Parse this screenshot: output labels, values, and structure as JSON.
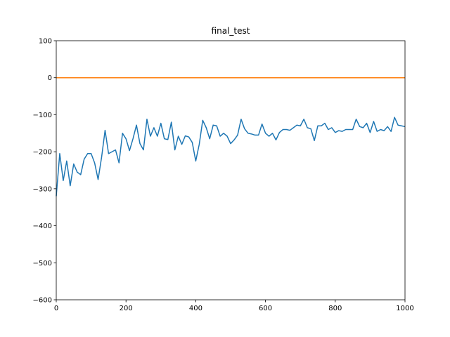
{
  "chart_data": {
    "type": "line",
    "title": "final_test",
    "xlabel": "",
    "ylabel": "",
    "xlim": [
      0,
      1000
    ],
    "ylim": [
      -600,
      100
    ],
    "xticks": [
      0,
      200,
      400,
      600,
      800,
      1000
    ],
    "yticks": [
      100,
      0,
      -100,
      -200,
      -300,
      -400,
      -500,
      -600
    ],
    "grid": false,
    "legend": "none",
    "series": [
      {
        "color": "#1f77b4",
        "x": [
          0,
          10,
          20,
          30,
          40,
          50,
          60,
          70,
          80,
          90,
          100,
          110,
          120,
          130,
          140,
          150,
          160,
          170,
          180,
          190,
          200,
          210,
          220,
          230,
          240,
          250,
          260,
          270,
          280,
          290,
          300,
          310,
          320,
          330,
          340,
          350,
          360,
          370,
          380,
          390,
          400,
          410,
          420,
          430,
          440,
          450,
          460,
          470,
          480,
          490,
          500,
          510,
          520,
          530,
          540,
          550,
          560,
          570,
          580,
          590,
          600,
          610,
          620,
          630,
          640,
          650,
          660,
          670,
          680,
          690,
          700,
          710,
          720,
          730,
          740,
          750,
          760,
          770,
          780,
          790,
          800,
          810,
          820,
          830,
          840,
          850,
          860,
          870,
          880,
          890,
          900,
          910,
          920,
          930,
          940,
          950,
          960,
          970,
          980,
          990,
          1000
        ],
        "y": [
          -320,
          -205,
          -278,
          -225,
          -292,
          -233,
          -255,
          -262,
          -220,
          -205,
          -205,
          -230,
          -275,
          -215,
          -142,
          -205,
          -200,
          -195,
          -230,
          -150,
          -165,
          -197,
          -165,
          -128,
          -178,
          -195,
          -112,
          -158,
          -135,
          -158,
          -123,
          -165,
          -167,
          -120,
          -195,
          -158,
          -180,
          -157,
          -160,
          -175,
          -225,
          -180,
          -115,
          -135,
          -165,
          -128,
          -130,
          -158,
          -150,
          -158,
          -178,
          -168,
          -155,
          -112,
          -138,
          -150,
          -152,
          -155,
          -155,
          -125,
          -150,
          -158,
          -150,
          -168,
          -148,
          -140,
          -140,
          -142,
          -135,
          -128,
          -130,
          -112,
          -135,
          -138,
          -170,
          -130,
          -130,
          -123,
          -140,
          -135,
          -148,
          -143,
          -145,
          -140,
          -140,
          -140,
          -112,
          -132,
          -135,
          -123,
          -148,
          -118,
          -145,
          -140,
          -143,
          -132,
          -145,
          -107,
          -128,
          -130,
          -132
        ]
      },
      {
        "color": "#ff7f0e",
        "x": [
          0,
          1000
        ],
        "y": [
          0,
          0
        ]
      }
    ]
  }
}
